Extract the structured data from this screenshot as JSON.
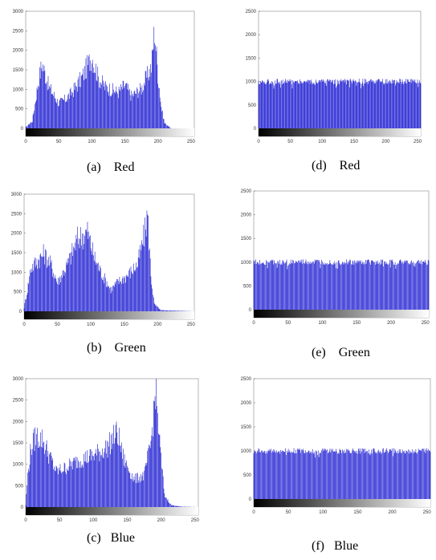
{
  "panels": [
    {
      "id": "a",
      "caption": "(a)    Red",
      "chart_data": {
        "type": "bar",
        "xlim": [
          0,
          255
        ],
        "ylim": [
          0,
          3000
        ],
        "xticks": [
          "0",
          "50",
          "100",
          "150",
          "200",
          "250"
        ],
        "yticks": [
          "0",
          "500",
          "1000",
          "1500",
          "2000",
          "2500",
          "3000"
        ],
        "color": "#0000cc",
        "bins": [
          {
            "x": 0,
            "y": 30
          },
          {
            "x": 10,
            "y": 200
          },
          {
            "x": 20,
            "y": 1400
          },
          {
            "x": 25,
            "y": 1800
          },
          {
            "x": 35,
            "y": 1150
          },
          {
            "x": 50,
            "y": 700
          },
          {
            "x": 60,
            "y": 800
          },
          {
            "x": 70,
            "y": 1000
          },
          {
            "x": 85,
            "y": 1400
          },
          {
            "x": 100,
            "y": 2000
          },
          {
            "x": 110,
            "y": 1400
          },
          {
            "x": 120,
            "y": 1150
          },
          {
            "x": 140,
            "y": 1000
          },
          {
            "x": 150,
            "y": 1200
          },
          {
            "x": 160,
            "y": 900
          },
          {
            "x": 175,
            "y": 1100
          },
          {
            "x": 190,
            "y": 1700
          },
          {
            "x": 195,
            "y": 2750
          },
          {
            "x": 200,
            "y": 1500
          },
          {
            "x": 205,
            "y": 600
          },
          {
            "x": 210,
            "y": 150
          },
          {
            "x": 220,
            "y": 0
          },
          {
            "x": 255,
            "y": 0
          }
        ]
      }
    },
    {
      "id": "b",
      "caption": "(b)    Green",
      "chart_data": {
        "type": "bar",
        "xlim": [
          0,
          255
        ],
        "ylim": [
          0,
          3000
        ],
        "xticks": [
          "0",
          "50",
          "100",
          "150",
          "200",
          "250"
        ],
        "yticks": [
          "0",
          "500",
          "1000",
          "1500",
          "2000",
          "2500",
          "3000"
        ],
        "color": "#0000cc",
        "bins": [
          {
            "x": 0,
            "y": 100
          },
          {
            "x": 5,
            "y": 600
          },
          {
            "x": 10,
            "y": 1200
          },
          {
            "x": 20,
            "y": 1400
          },
          {
            "x": 30,
            "y": 1600
          },
          {
            "x": 40,
            "y": 1300
          },
          {
            "x": 50,
            "y": 800
          },
          {
            "x": 65,
            "y": 1300
          },
          {
            "x": 80,
            "y": 2000
          },
          {
            "x": 95,
            "y": 2200
          },
          {
            "x": 105,
            "y": 1500
          },
          {
            "x": 115,
            "y": 1100
          },
          {
            "x": 130,
            "y": 600
          },
          {
            "x": 140,
            "y": 800
          },
          {
            "x": 155,
            "y": 1000
          },
          {
            "x": 170,
            "y": 1300
          },
          {
            "x": 180,
            "y": 2100
          },
          {
            "x": 185,
            "y": 2700
          },
          {
            "x": 190,
            "y": 1000
          },
          {
            "x": 195,
            "y": 200
          },
          {
            "x": 205,
            "y": 30
          },
          {
            "x": 255,
            "y": 0
          }
        ]
      }
    },
    {
      "id": "c",
      "caption": "(c)   Blue",
      "chart_data": {
        "type": "bar",
        "xlim": [
          0,
          255
        ],
        "ylim": [
          0,
          3000
        ],
        "xticks": [
          "0",
          "50",
          "100",
          "150",
          "200",
          "250"
        ],
        "yticks": [
          "0",
          "500",
          "1000",
          "1500",
          "2000",
          "2500",
          "3000"
        ],
        "color": "#0000cc",
        "bins": [
          {
            "x": 0,
            "y": 50
          },
          {
            "x": 3,
            "y": 800
          },
          {
            "x": 8,
            "y": 1500
          },
          {
            "x": 15,
            "y": 1800
          },
          {
            "x": 25,
            "y": 1700
          },
          {
            "x": 35,
            "y": 1300
          },
          {
            "x": 45,
            "y": 900
          },
          {
            "x": 60,
            "y": 1000
          },
          {
            "x": 80,
            "y": 1200
          },
          {
            "x": 100,
            "y": 1300
          },
          {
            "x": 120,
            "y": 1500
          },
          {
            "x": 135,
            "y": 1900
          },
          {
            "x": 145,
            "y": 1200
          },
          {
            "x": 160,
            "y": 700
          },
          {
            "x": 175,
            "y": 800
          },
          {
            "x": 185,
            "y": 1600
          },
          {
            "x": 192,
            "y": 3000
          },
          {
            "x": 198,
            "y": 1600
          },
          {
            "x": 205,
            "y": 300
          },
          {
            "x": 215,
            "y": 50
          },
          {
            "x": 230,
            "y": 10
          },
          {
            "x": 255,
            "y": 0
          }
        ]
      }
    },
    {
      "id": "d",
      "caption": "(d)    Red",
      "chart_data": {
        "type": "bar",
        "xlim": [
          0,
          255
        ],
        "ylim": [
          0,
          2500
        ],
        "xticks": [
          "0",
          "50",
          "100",
          "150",
          "200",
          "250"
        ],
        "yticks": [
          "0",
          "500",
          "1000",
          "1500",
          "2000",
          "2500"
        ],
        "color": "#0000cc",
        "uniform_level": 1000,
        "uniform_jitter": 60
      }
    },
    {
      "id": "e",
      "caption": "(e)    Green",
      "chart_data": {
        "type": "bar",
        "xlim": [
          0,
          255
        ],
        "ylim": [
          0,
          2500
        ],
        "xticks": [
          "0",
          "50",
          "100",
          "150",
          "200",
          "250"
        ],
        "yticks": [
          "0",
          "500",
          "1000",
          "1500",
          "2000",
          "2500"
        ],
        "color": "#0000cc",
        "uniform_level": 1000,
        "uniform_jitter": 60
      }
    },
    {
      "id": "f",
      "caption": "(f)   Blue",
      "chart_data": {
        "type": "bar",
        "xlim": [
          0,
          255
        ],
        "ylim": [
          0,
          2500
        ],
        "xticks": [
          "0",
          "50",
          "100",
          "150",
          "200",
          "250"
        ],
        "yticks": [
          "0",
          "500",
          "1000",
          "1500",
          "2000",
          "2500"
        ],
        "color": "#0000cc",
        "uniform_level": 1000,
        "uniform_jitter": 60
      }
    }
  ]
}
